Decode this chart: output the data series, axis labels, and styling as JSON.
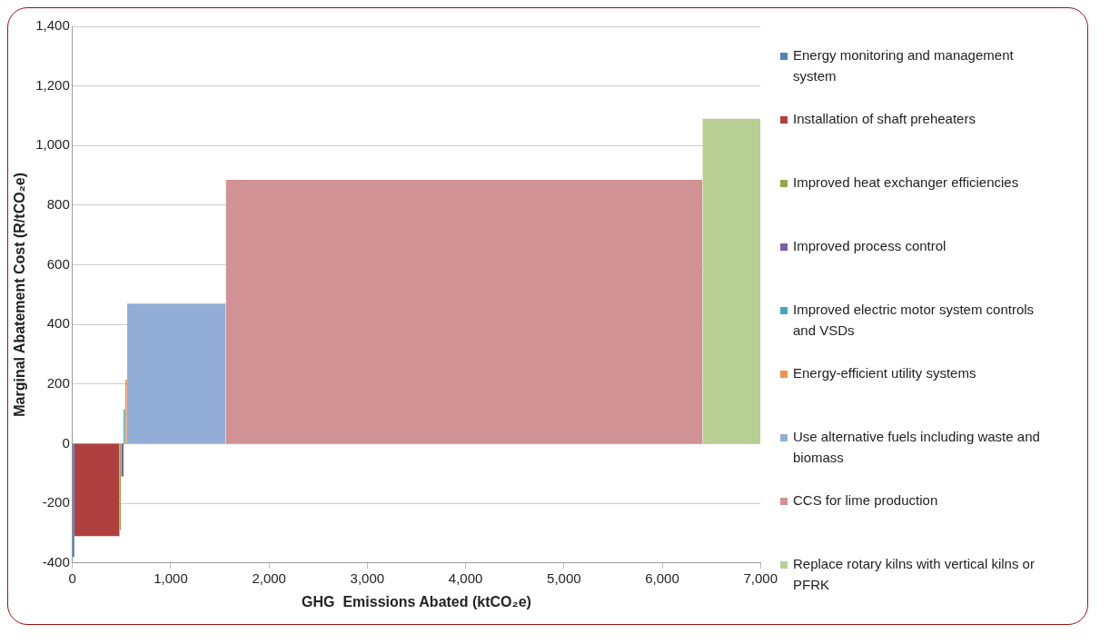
{
  "chart_data": {
    "type": "area",
    "xlabel": "GHG  Emissions Abated (ktCO₂e)",
    "ylabel": "Marginal Abatement Cost (R/tCO₂e)",
    "series": [
      {
        "name": "Energy monitoring and management system",
        "color": "#4f81bd",
        "x": [
          0,
          20
        ],
        "values": [
          -380,
          -380
        ]
      },
      {
        "name": "Installation of shaft preheaters",
        "color": "#b04040",
        "x": [
          20,
          480
        ],
        "values": [
          -310,
          -310
        ]
      },
      {
        "name": "Improved heat exchanger efficiencies",
        "color": "#8aad48",
        "x": [
          480,
          495
        ],
        "values": [
          -290,
          -290
        ]
      },
      {
        "name": "Improved process control",
        "color": "#7b5ea7",
        "x": [
          495,
          520
        ],
        "values": [
          -110,
          -110
        ]
      },
      {
        "name": "Improved electric motor system controls and VSDs",
        "color": "#3fa7be",
        "x": [
          520,
          535
        ],
        "values": [
          115,
          115
        ]
      },
      {
        "name": "Energy-efficient utility systems",
        "color": "#f1904a",
        "x": [
          535,
          555
        ],
        "values": [
          215,
          215
        ]
      },
      {
        "name": "Use alternative fuels including waste and biomass",
        "color": "#93aed6",
        "x": [
          555,
          1560
        ],
        "values": [
          470,
          470
        ]
      },
      {
        "name": "CCS for lime production",
        "color": "#d09294",
        "x": [
          1560,
          6410
        ],
        "values": [
          885,
          885
        ]
      },
      {
        "name": "Replace rotary kilns with vertical kilns or PFRK",
        "color": "#b8cf94",
        "x": [
          6410,
          7000
        ],
        "values": [
          1090,
          1090
        ]
      }
    ],
    "xlim": [
      0,
      7000
    ],
    "xticks": [
      {
        "value": 0,
        "label": "0"
      },
      {
        "value": 1000,
        "label": "1,000"
      },
      {
        "value": 2000,
        "label": "2,000"
      },
      {
        "value": 3000,
        "label": "3,000"
      },
      {
        "value": 4000,
        "label": "4,000"
      },
      {
        "value": 5000,
        "label": "5,000"
      },
      {
        "value": 6000,
        "label": "6,000"
      },
      {
        "value": 7000,
        "label": "7,000"
      }
    ],
    "ylim": [
      -400,
      1400
    ],
    "yticks": [
      -400,
      -200,
      0,
      200,
      400,
      600,
      800,
      {
        "value": 1000,
        "label": "1,000"
      },
      {
        "value": 1200,
        "label": "1,200"
      },
      {
        "value": 1400,
        "label": "1,400"
      }
    ],
    "grid": "y",
    "legend": "right"
  }
}
